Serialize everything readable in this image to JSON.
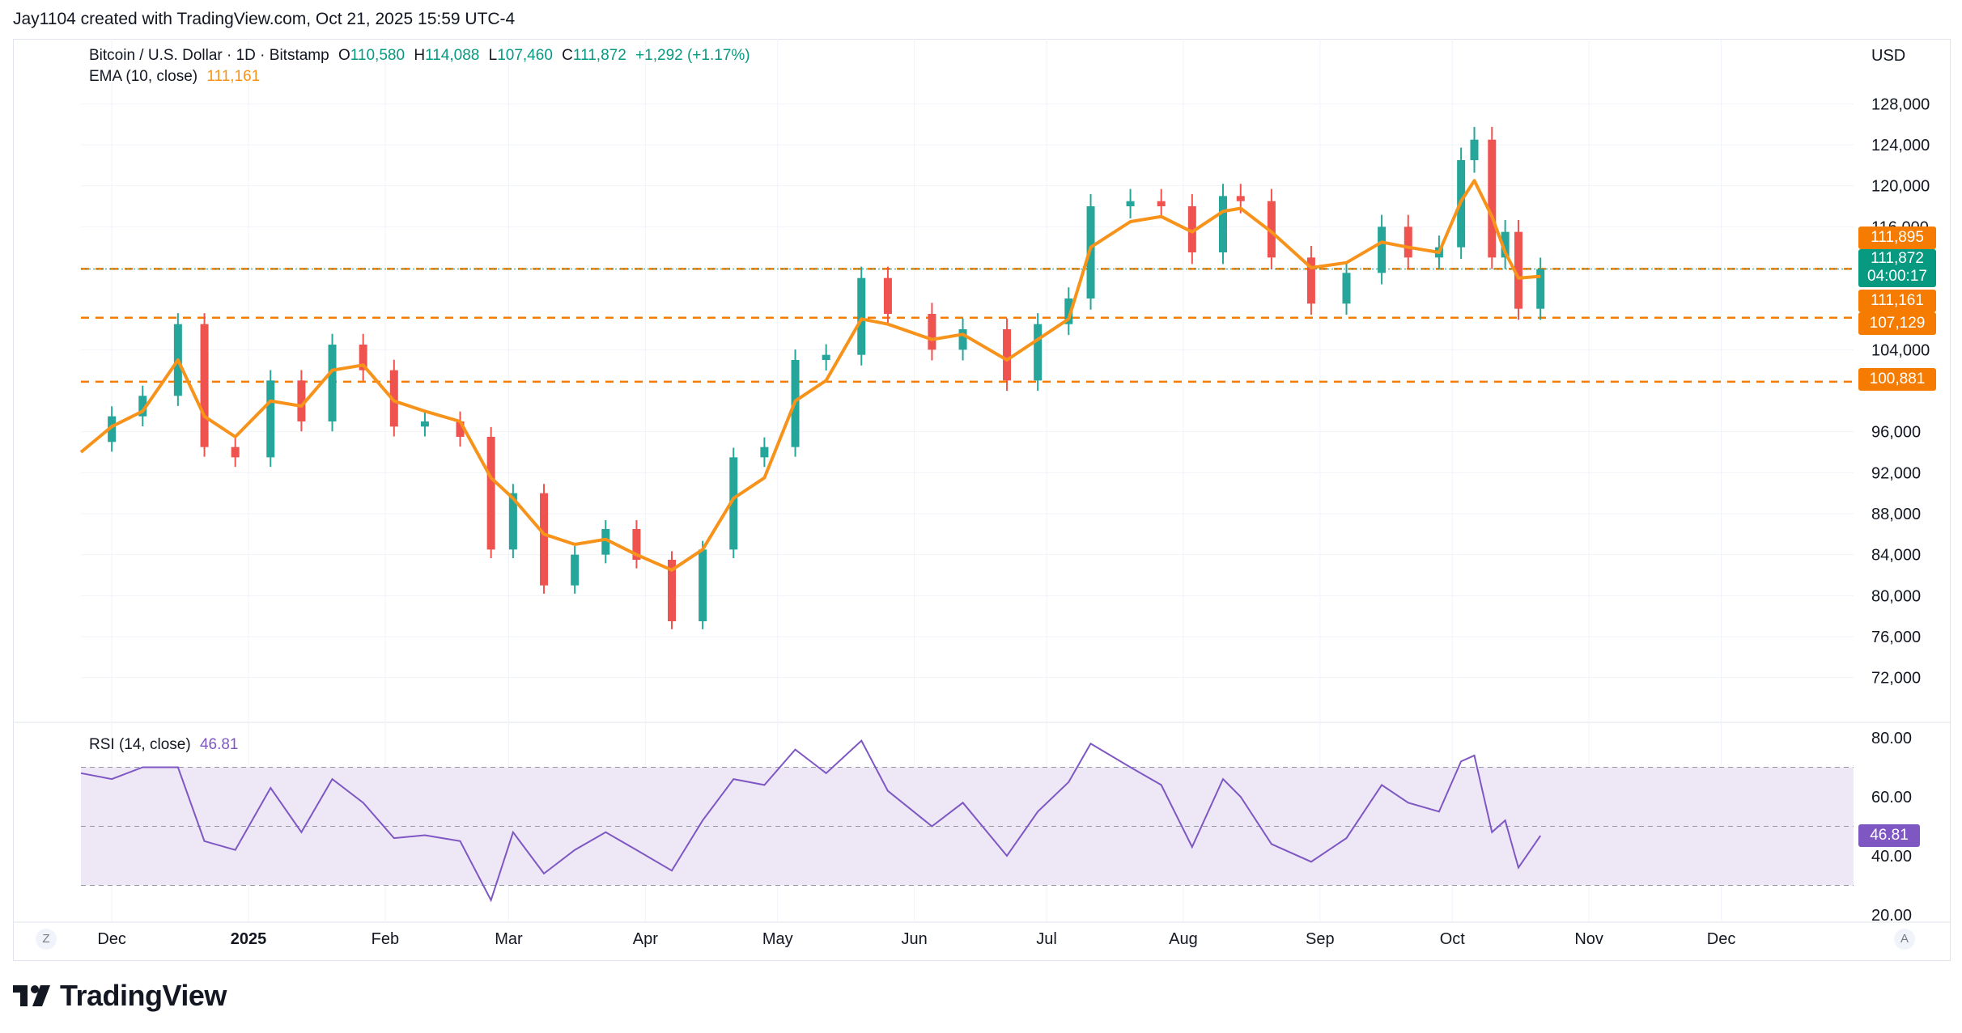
{
  "header": {
    "credit": "Jay1104 created with TradingView.com, Oct 21, 2025 15:59 UTC-4"
  },
  "brand": {
    "name": "TradingView",
    "logo_icon": "tradingview-logo-icon"
  },
  "legend": {
    "symbol": "Bitcoin / U.S. Dollar · 1D · Bitstamp",
    "open_label": "O",
    "open": "110,580",
    "high_label": "H",
    "high": "114,088",
    "low_label": "L",
    "low": "107,460",
    "close_label": "C",
    "close": "111,872",
    "change": "+1,292 (+1.17%)",
    "ema_label": "EMA (10, close)",
    "ema_value": "111,161",
    "rsi_label": "RSI (14, close)",
    "rsi_value": "46.81"
  },
  "controls": {
    "zoom_left": "Z",
    "auto_scale": "A"
  },
  "colors": {
    "up": "#26a69a",
    "down": "#ef5350",
    "ema": "#f7931a",
    "level": "#f57c00",
    "rsi": "#7e57c2",
    "rsi_band": "#ede7f6",
    "current_price": "#089981"
  },
  "chart_data": {
    "type": "line",
    "currency": "USD",
    "y_axis_ticks": [
      "128,000",
      "124,000",
      "120,000",
      "116,000",
      "104,000",
      "96,000",
      "92,000",
      "88,000",
      "84,000",
      "80,000",
      "76,000",
      "72,000"
    ],
    "ylim": [
      70000,
      130000
    ],
    "x_axis_ticks": [
      "Dec",
      "2025",
      "Feb",
      "Mar",
      "Apr",
      "May",
      "Jun",
      "Jul",
      "Aug",
      "Sep",
      "Oct",
      "Nov",
      "Dec"
    ],
    "x_tick_dates": [
      "2024-12-01",
      "2025-01-01",
      "2025-02-01",
      "2025-03-01",
      "2025-04-01",
      "2025-05-01",
      "2025-06-01",
      "2025-07-01",
      "2025-08-01",
      "2025-09-01",
      "2025-10-01",
      "2025-11-01",
      "2025-12-01"
    ],
    "xlim": [
      "2024-11-24",
      "2025-12-31"
    ],
    "price_close_series": {
      "name": "Bitcoin / U.S. Dollar",
      "dates": [
        "2024-11-24",
        "2024-12-01",
        "2024-12-08",
        "2024-12-16",
        "2024-12-22",
        "2024-12-29",
        "2025-01-06",
        "2025-01-13",
        "2025-01-20",
        "2025-01-27",
        "2025-02-03",
        "2025-02-10",
        "2025-02-18",
        "2025-02-25",
        "2025-03-02",
        "2025-03-09",
        "2025-03-16",
        "2025-03-23",
        "2025-03-30",
        "2025-04-07",
        "2025-04-14",
        "2025-04-21",
        "2025-04-28",
        "2025-05-05",
        "2025-05-12",
        "2025-05-20",
        "2025-05-26",
        "2025-06-05",
        "2025-06-12",
        "2025-06-22",
        "2025-06-29",
        "2025-07-06",
        "2025-07-11",
        "2025-07-20",
        "2025-07-27",
        "2025-08-03",
        "2025-08-10",
        "2025-08-14",
        "2025-08-21",
        "2025-08-30",
        "2025-09-07",
        "2025-09-15",
        "2025-09-21",
        "2025-09-28",
        "2025-10-03",
        "2025-10-06",
        "2025-10-10",
        "2025-10-13",
        "2025-10-16",
        "2025-10-21"
      ],
      "values": [
        95000,
        97500,
        99500,
        106500,
        94500,
        93500,
        101000,
        97000,
        104500,
        102000,
        96500,
        97000,
        95500,
        84500,
        90000,
        81000,
        84000,
        86500,
        83500,
        77500,
        84500,
        93500,
        94500,
        103000,
        103500,
        111000,
        107500,
        104000,
        106000,
        101000,
        106500,
        109000,
        118000,
        118500,
        118000,
        113500,
        119000,
        118500,
        113000,
        108500,
        111500,
        116000,
        113000,
        114000,
        122500,
        124500,
        113000,
        115500,
        108000,
        111872
      ]
    },
    "ema_series": {
      "name": "EMA (10, close)",
      "dates": [
        "2024-11-24",
        "2024-12-01",
        "2024-12-08",
        "2024-12-16",
        "2024-12-22",
        "2024-12-29",
        "2025-01-06",
        "2025-01-13",
        "2025-01-20",
        "2025-01-27",
        "2025-02-03",
        "2025-02-10",
        "2025-02-18",
        "2025-02-25",
        "2025-03-02",
        "2025-03-09",
        "2025-03-16",
        "2025-03-23",
        "2025-03-30",
        "2025-04-07",
        "2025-04-14",
        "2025-04-21",
        "2025-04-28",
        "2025-05-05",
        "2025-05-12",
        "2025-05-20",
        "2025-05-26",
        "2025-06-05",
        "2025-06-12",
        "2025-06-22",
        "2025-06-29",
        "2025-07-06",
        "2025-07-11",
        "2025-07-20",
        "2025-07-27",
        "2025-08-03",
        "2025-08-10",
        "2025-08-14",
        "2025-08-21",
        "2025-08-30",
        "2025-09-07",
        "2025-09-15",
        "2025-09-21",
        "2025-09-28",
        "2025-10-03",
        "2025-10-06",
        "2025-10-10",
        "2025-10-13",
        "2025-10-16",
        "2025-10-21"
      ],
      "values": [
        94000,
        96500,
        98000,
        103000,
        97500,
        95500,
        99000,
        98500,
        102000,
        102500,
        99000,
        98000,
        97000,
        91500,
        89500,
        86000,
        85000,
        85500,
        84000,
        82500,
        84500,
        89500,
        91500,
        99000,
        101000,
        107000,
        106500,
        105000,
        105500,
        103000,
        105000,
        107000,
        114000,
        116500,
        117000,
        115500,
        117500,
        117800,
        115500,
        112000,
        112500,
        114500,
        114000,
        113500,
        118500,
        120500,
        117000,
        113500,
        111000,
        111161
      ]
    },
    "levels": [
      {
        "label": "111,895",
        "value": 111895,
        "color": "#f57c00"
      },
      {
        "label": "107,129",
        "value": 107129,
        "color": "#f57c00"
      },
      {
        "label": "100,881",
        "value": 100881,
        "color": "#f57c00"
      }
    ],
    "price_tags": [
      {
        "label": "111,895",
        "color": "#f57c00"
      },
      {
        "label": "111,872",
        "sub": "04:00:17",
        "color": "#089981"
      },
      {
        "label": "111,161",
        "color": "#f57c00"
      },
      {
        "label": "107,129",
        "color": "#f57c00"
      },
      {
        "label": "100,881",
        "color": "#f57c00"
      }
    ],
    "rsi": {
      "name": "RSI (14, close)",
      "y_axis_ticks": [
        "80.00",
        "60.00",
        "40.00",
        "20.00"
      ],
      "ylim": [
        20,
        80
      ],
      "upper": 70,
      "middle": 50,
      "lower": 30,
      "current_tag": "46.81",
      "dates": [
        "2024-11-24",
        "2024-12-01",
        "2024-12-08",
        "2024-12-16",
        "2024-12-22",
        "2024-12-29",
        "2025-01-06",
        "2025-01-13",
        "2025-01-20",
        "2025-01-27",
        "2025-02-03",
        "2025-02-10",
        "2025-02-18",
        "2025-02-25",
        "2025-03-02",
        "2025-03-09",
        "2025-03-16",
        "2025-03-23",
        "2025-03-30",
        "2025-04-07",
        "2025-04-14",
        "2025-04-21",
        "2025-04-28",
        "2025-05-05",
        "2025-05-12",
        "2025-05-20",
        "2025-05-26",
        "2025-06-05",
        "2025-06-12",
        "2025-06-22",
        "2025-06-29",
        "2025-07-06",
        "2025-07-11",
        "2025-07-20",
        "2025-07-27",
        "2025-08-03",
        "2025-08-10",
        "2025-08-14",
        "2025-08-21",
        "2025-08-30",
        "2025-09-07",
        "2025-09-15",
        "2025-09-21",
        "2025-09-28",
        "2025-10-03",
        "2025-10-06",
        "2025-10-10",
        "2025-10-13",
        "2025-10-16",
        "2025-10-21"
      ],
      "values": [
        68,
        66,
        70,
        70,
        45,
        42,
        63,
        48,
        66,
        58,
        46,
        47,
        45,
        25,
        48,
        34,
        42,
        48,
        42,
        35,
        52,
        66,
        64,
        76,
        68,
        79,
        62,
        50,
        58,
        40,
        55,
        65,
        78,
        70,
        64,
        43,
        66,
        60,
        44,
        38,
        46,
        64,
        58,
        55,
        72,
        74,
        48,
        52,
        36,
        46.81
      ]
    }
  }
}
